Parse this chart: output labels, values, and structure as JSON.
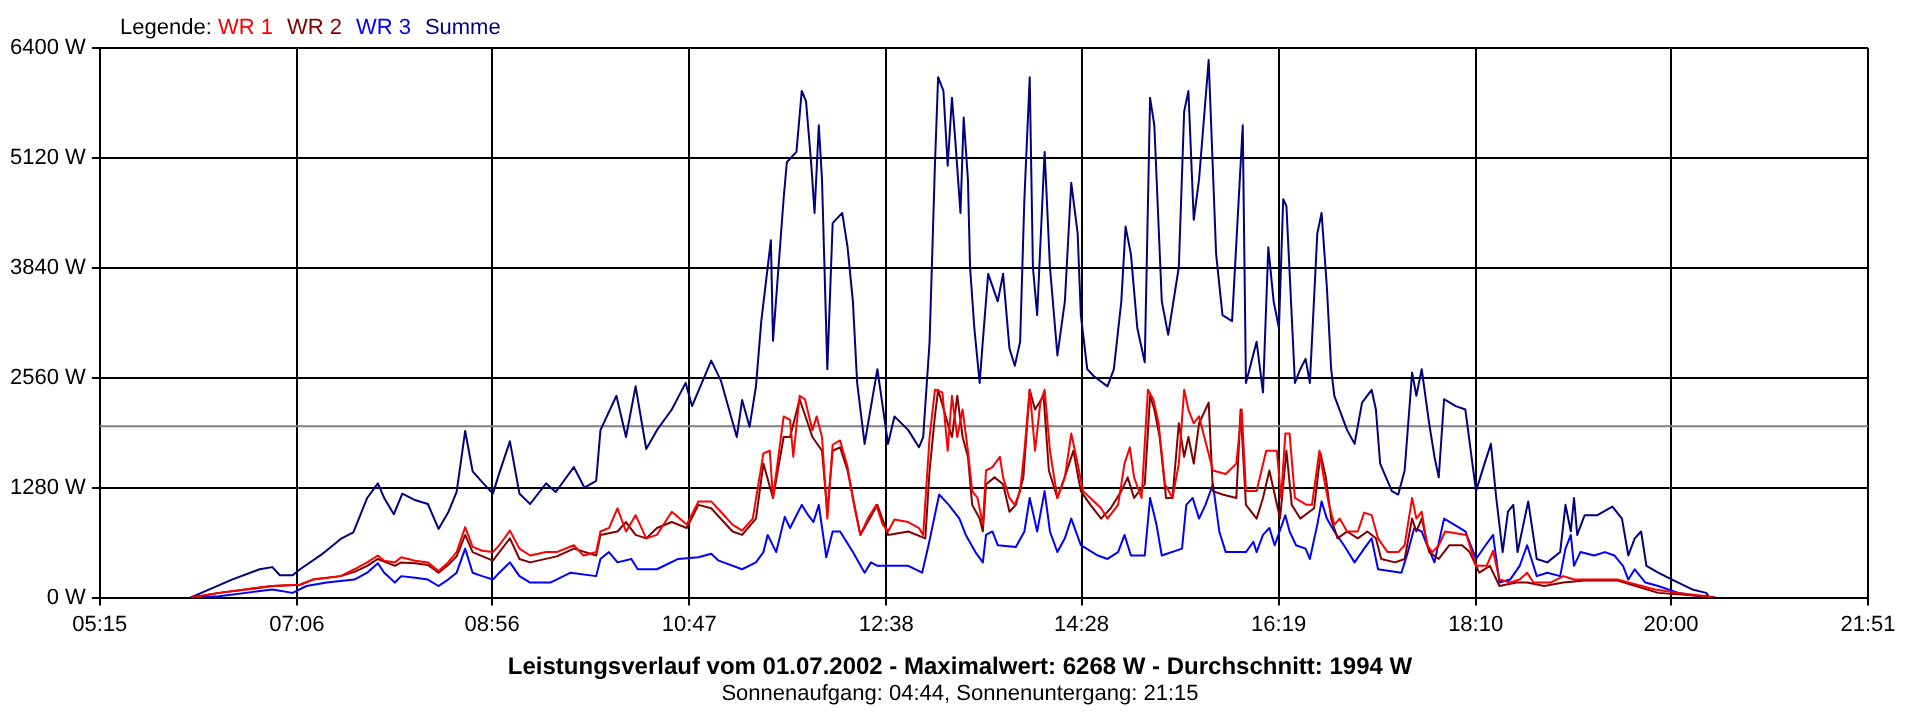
{
  "chart_data": {
    "type": "line",
    "title": "Leistungsverlauf vom 01.07.2002 - Maximalwert: 6268 W - Durchschnitt: 1994 W",
    "subtitle": "Sonnenaufgang: 04:44, Sonnenuntergang: 21:15",
    "legend_title": "Legende:",
    "legend": "top left",
    "grid": true,
    "marker": "none",
    "xlim": [
      5.25,
      21.85
    ],
    "xticks": [
      {
        "value": 5.25,
        "label": "05:15"
      },
      {
        "value": 7.1,
        "label": "07:06"
      },
      {
        "value": 8.9333,
        "label": "08:56"
      },
      {
        "value": 10.7833,
        "label": "10:47"
      },
      {
        "value": 12.6333,
        "label": "12:38"
      },
      {
        "value": 14.4667,
        "label": "14:28"
      },
      {
        "value": 16.3167,
        "label": "16:19"
      },
      {
        "value": 18.1667,
        "label": "18:10"
      },
      {
        "value": 20,
        "label": "20:00"
      },
      {
        "value": 21.85,
        "label": "21:51"
      }
    ],
    "ylim": [
      0,
      6400
    ],
    "yticks": [
      {
        "value": 0,
        "label": "0 W"
      },
      {
        "value": 1280,
        "label": "1280 W"
      },
      {
        "value": 2560,
        "label": "2560 W"
      },
      {
        "value": 3840,
        "label": "3840 W"
      },
      {
        "value": 5120,
        "label": "5120 W"
      },
      {
        "value": 6400,
        "label": "6400 W"
      }
    ],
    "ref_lines": [
      {
        "axis": "y",
        "value": 1994,
        "color": "#808080"
      }
    ],
    "series": [
      {
        "name": "WR 1",
        "color": "#ff0000",
        "x": [
          6.11,
          6.37,
          6.62,
          6.87,
          7.13,
          7.25,
          7.51,
          7.64,
          7.76,
          7.86,
          7.92,
          8.02,
          8.08,
          8.21,
          8.33,
          8.43,
          8.52,
          8.6,
          8.68,
          8.75,
          8.84,
          8.94,
          9.0,
          9.1,
          9.19,
          9.29,
          9.44,
          9.54,
          9.7,
          9.79,
          9.91,
          9.95,
          10.03,
          10.11,
          10.19,
          10.28,
          10.38,
          10.48,
          10.62,
          10.76,
          10.87,
          10.99,
          11.08,
          11.19,
          11.28,
          11.38,
          11.48,
          11.54,
          11.57,
          11.67,
          11.73,
          11.76,
          11.82,
          11.87,
          11.94,
          11.98,
          12.03,
          12.08,
          12.13,
          12.2,
          12.27,
          12.33,
          12.39,
          12.46,
          12.54,
          12.6,
          12.65,
          12.71,
          12.84,
          12.94,
          12.98,
          13.04,
          13.09,
          13.16,
          13.21,
          13.25,
          13.3,
          13.35,
          13.4,
          13.44,
          13.49,
          13.54,
          13.57,
          13.63,
          13.7,
          13.73,
          13.79,
          13.84,
          13.89,
          13.93,
          13.98,
          14.03,
          14.08,
          14.12,
          14.17,
          14.24,
          14.31,
          14.37,
          14.43,
          14.48,
          14.55,
          14.65,
          14.71,
          14.81,
          14.87,
          14.92,
          14.96,
          15.03,
          15.09,
          15.14,
          15.19,
          15.25,
          15.32,
          15.38,
          15.43,
          15.47,
          15.52,
          15.57,
          15.7,
          15.82,
          15.92,
          15.97,
          16.01,
          16.11,
          16.2,
          16.3,
          16.34,
          16.38,
          16.42,
          16.47,
          16.58,
          16.63,
          16.7,
          16.74,
          16.79,
          16.84,
          16.89,
          16.96,
          17.06,
          17.12,
          17.19,
          17.25,
          17.34,
          17.44,
          17.5,
          17.57,
          17.61,
          17.66,
          17.71,
          17.76,
          17.82,
          17.88,
          18.08,
          18.17,
          18.27,
          18.33,
          18.39,
          18.49,
          18.58,
          18.65,
          18.71,
          18.87,
          18.99,
          19.09,
          19.5,
          19.6,
          19.85,
          20.07,
          20.33,
          20.39
        ],
        "values": [
          0,
          55,
          95,
          135,
          150,
          210,
          250,
          330,
          410,
          490,
          430,
          410,
          470,
          430,
          410,
          310,
          410,
          530,
          820,
          590,
          545,
          530,
          610,
          780,
          570,
          490,
          530,
          530,
          610,
          490,
          530,
          770,
          810,
          1040,
          770,
          960,
          690,
          730,
          1000,
          850,
          1120,
          1120,
          1000,
          850,
          780,
          920,
          1680,
          1710,
          1160,
          2110,
          2070,
          1640,
          2350,
          2310,
          1950,
          2110,
          1870,
          920,
          1780,
          1830,
          1520,
          1080,
          730,
          920,
          1080,
          850,
          770,
          910,
          880,
          810,
          730,
          1870,
          2420,
          2390,
          1710,
          2350,
          1870,
          2190,
          1710,
          1240,
          1160,
          850,
          1480,
          1520,
          1640,
          1400,
          1160,
          1080,
          1240,
          1710,
          2420,
          1710,
          2270,
          2420,
          1710,
          1160,
          1400,
          1910,
          1560,
          1240,
          1160,
          1040,
          920,
          1080,
          1560,
          1750,
          1400,
          1160,
          2420,
          2310,
          2030,
          1320,
          1160,
          1560,
          2420,
          2190,
          2030,
          2110,
          1480,
          1440,
          1560,
          2190,
          1240,
          1240,
          1710,
          1710,
          1160,
          1910,
          1910,
          1160,
          1080,
          1080,
          1710,
          1400,
          1080,
          850,
          920,
          770,
          770,
          990,
          960,
          690,
          530,
          530,
          610,
          1160,
          920,
          1000,
          610,
          530,
          610,
          770,
          730,
          370,
          370,
          545,
          210,
          175,
          210,
          290,
          175,
          175,
          250,
          210,
          210,
          175,
          95,
          55,
          15,
          0
        ]
      },
      {
        "name": "WR 2",
        "color": "#800000",
        "x": [
          6.11,
          6.37,
          6.62,
          6.87,
          7.13,
          7.25,
          7.51,
          7.64,
          7.76,
          7.86,
          8.02,
          8.08,
          8.21,
          8.33,
          8.43,
          8.52,
          8.6,
          8.68,
          8.75,
          8.94,
          9.1,
          9.19,
          9.29,
          9.54,
          9.7,
          9.91,
          9.95,
          10.11,
          10.19,
          10.28,
          10.38,
          10.48,
          10.62,
          10.76,
          10.87,
          10.99,
          11.19,
          11.28,
          11.41,
          11.48,
          11.57,
          11.67,
          11.73,
          11.82,
          11.94,
          12.03,
          12.08,
          12.13,
          12.2,
          12.27,
          12.39,
          12.55,
          12.65,
          12.84,
          13.0,
          13.04,
          13.09,
          13.12,
          13.21,
          13.25,
          13.3,
          13.35,
          13.4,
          13.44,
          13.51,
          13.54,
          13.57,
          13.65,
          13.73,
          13.79,
          13.85,
          13.92,
          13.98,
          14.03,
          14.11,
          14.16,
          14.24,
          14.33,
          14.39,
          14.46,
          14.55,
          14.65,
          14.74,
          14.84,
          14.9,
          14.96,
          15.06,
          15.11,
          15.15,
          15.2,
          15.26,
          15.32,
          15.38,
          15.43,
          15.47,
          15.52,
          15.57,
          15.66,
          15.7,
          15.79,
          15.92,
          15.96,
          16.01,
          16.11,
          16.17,
          16.23,
          16.33,
          16.39,
          16.44,
          16.52,
          16.65,
          16.71,
          16.76,
          16.81,
          16.87,
          16.96,
          17.06,
          17.15,
          17.23,
          17.28,
          17.41,
          17.5,
          17.57,
          17.61,
          17.66,
          17.73,
          17.82,
          17.92,
          18.04,
          18.11,
          18.2,
          18.3,
          18.39,
          18.55,
          18.65,
          18.81,
          18.99,
          19.19,
          19.5,
          19.63,
          19.88,
          20.33,
          20.42
        ],
        "values": [
          0,
          55,
          95,
          135,
          150,
          210,
          250,
          300,
          370,
          450,
          370,
          410,
          400,
          380,
          290,
          380,
          480,
          730,
          530,
          430,
          690,
          450,
          410,
          480,
          570,
          490,
          730,
          770,
          880,
          730,
          690,
          810,
          880,
          810,
          1080,
          1040,
          770,
          730,
          920,
          1560,
          1160,
          1870,
          1870,
          2310,
          1870,
          1710,
          1000,
          1710,
          1750,
          1480,
          730,
          1080,
          730,
          770,
          690,
          1480,
          2110,
          2420,
          2030,
          1870,
          2350,
          1870,
          1640,
          1080,
          920,
          770,
          1320,
          1400,
          1320,
          1000,
          1080,
          1400,
          2420,
          2190,
          2350,
          1480,
          1160,
          1480,
          1710,
          1240,
          1080,
          920,
          1040,
          1240,
          1400,
          1160,
          1320,
          2350,
          2190,
          1870,
          1160,
          1160,
          2030,
          1640,
          1870,
          1560,
          2030,
          2270,
          1240,
          1200,
          1160,
          2190,
          1080,
          920,
          1160,
          1480,
          920,
          1710,
          1080,
          920,
          1040,
          1680,
          1400,
          920,
          690,
          770,
          690,
          770,
          690,
          450,
          410,
          450,
          920,
          770,
          920,
          530,
          450,
          610,
          610,
          530,
          290,
          370,
          135,
          175,
          175,
          135,
          175,
          200,
          200,
          150,
          55,
          15,
          0
        ]
      },
      {
        "name": "WR 3",
        "color": "#0000ff",
        "x": [
          6.11,
          6.37,
          6.62,
          6.87,
          7.06,
          7.19,
          7.38,
          7.64,
          7.76,
          7.86,
          7.92,
          8.02,
          8.08,
          8.21,
          8.33,
          8.43,
          8.52,
          8.6,
          8.68,
          8.75,
          8.84,
          8.94,
          9.0,
          9.1,
          9.19,
          9.29,
          9.48,
          9.67,
          9.91,
          9.95,
          10.03,
          10.11,
          10.24,
          10.3,
          10.48,
          10.68,
          10.87,
          10.99,
          11.06,
          11.28,
          11.41,
          11.48,
          11.52,
          11.6,
          11.68,
          11.73,
          11.84,
          11.9,
          11.95,
          12.0,
          12.07,
          12.13,
          12.2,
          12.32,
          12.43,
          12.49,
          12.55,
          12.84,
          12.97,
          13.03,
          13.13,
          13.22,
          13.32,
          13.38,
          13.47,
          13.54,
          13.57,
          13.63,
          13.68,
          13.85,
          13.93,
          13.98,
          14.05,
          14.12,
          14.17,
          14.24,
          14.31,
          14.37,
          14.46,
          14.62,
          14.71,
          14.81,
          14.87,
          14.93,
          15.06,
          15.11,
          15.17,
          15.22,
          15.41,
          15.45,
          15.51,
          15.57,
          15.63,
          15.7,
          15.76,
          15.82,
          16.01,
          16.08,
          16.11,
          16.17,
          16.23,
          16.28,
          16.38,
          16.42,
          16.48,
          16.57,
          16.61,
          16.68,
          16.72,
          16.77,
          16.84,
          16.93,
          17.03,
          17.12,
          17.19,
          17.25,
          17.47,
          17.53,
          17.59,
          17.66,
          17.71,
          17.78,
          17.87,
          18.07,
          18.17,
          18.26,
          18.33,
          18.39,
          18.49,
          18.58,
          18.65,
          18.74,
          18.84,
          18.96,
          19.01,
          19.06,
          19.09,
          19.15,
          19.28,
          19.38,
          19.47,
          19.55,
          19.6,
          19.66,
          19.76,
          19.88,
          20.07,
          20.26,
          20.36
        ],
        "values": [
          0,
          15,
          55,
          95,
          55,
          135,
          175,
          210,
          290,
          400,
          290,
          175,
          250,
          230,
          210,
          135,
          210,
          290,
          570,
          290,
          250,
          210,
          290,
          410,
          250,
          175,
          175,
          290,
          250,
          450,
          530,
          410,
          450,
          330,
          330,
          450,
          470,
          510,
          430,
          330,
          410,
          530,
          730,
          530,
          940,
          810,
          1080,
          960,
          880,
          1080,
          470,
          770,
          770,
          530,
          290,
          410,
          370,
          370,
          290,
          610,
          1200,
          1080,
          920,
          730,
          530,
          410,
          730,
          770,
          610,
          590,
          770,
          1160,
          770,
          1240,
          770,
          530,
          690,
          920,
          610,
          490,
          450,
          530,
          730,
          490,
          490,
          1160,
          850,
          490,
          570,
          1080,
          1160,
          920,
          1080,
          1320,
          770,
          530,
          530,
          650,
          530,
          730,
          810,
          610,
          960,
          770,
          610,
          570,
          450,
          850,
          1120,
          920,
          770,
          610,
          410,
          570,
          690,
          330,
          290,
          530,
          810,
          770,
          610,
          410,
          920,
          770,
          450,
          610,
          730,
          175,
          210,
          370,
          610,
          250,
          290,
          250,
          570,
          730,
          370,
          530,
          490,
          530,
          490,
          370,
          210,
          330,
          175,
          135,
          55,
          15,
          0
        ]
      },
      {
        "name": "Summe",
        "color": "#000080",
        "x": [
          6.1,
          6.49,
          6.75,
          6.87,
          6.94,
          7.06,
          7.13,
          7.33,
          7.52,
          7.63,
          7.76,
          7.86,
          7.92,
          8.01,
          8.09,
          8.2,
          8.33,
          8.43,
          8.52,
          8.6,
          8.68,
          8.75,
          8.85,
          8.94,
          9.0,
          9.1,
          9.19,
          9.29,
          9.44,
          9.53,
          9.7,
          9.8,
          9.91,
          9.95,
          10.1,
          10.19,
          10.28,
          10.38,
          10.48,
          10.62,
          10.75,
          10.81,
          10.99,
          11.08,
          11.23,
          11.28,
          11.35,
          11.41,
          11.46,
          11.55,
          11.57,
          11.67,
          11.7,
          11.79,
          11.84,
          11.88,
          11.93,
          11.96,
          12.0,
          12.03,
          12.08,
          12.13,
          12.22,
          12.27,
          12.32,
          12.36,
          12.43,
          12.55,
          12.65,
          12.71,
          12.84,
          12.94,
          12.98,
          13.04,
          13.09,
          13.12,
          13.17,
          13.21,
          13.25,
          13.28,
          13.33,
          13.36,
          13.4,
          13.42,
          13.46,
          13.51,
          13.54,
          13.59,
          13.68,
          13.73,
          13.79,
          13.84,
          13.89,
          13.93,
          13.98,
          14.01,
          14.05,
          14.12,
          14.17,
          14.24,
          14.31,
          14.37,
          14.43,
          14.46,
          14.52,
          14.58,
          14.71,
          14.77,
          14.84,
          14.88,
          14.93,
          14.99,
          15.06,
          15.11,
          15.15,
          15.22,
          15.28,
          15.38,
          15.43,
          15.47,
          15.52,
          15.57,
          15.66,
          15.73,
          15.79,
          15.88,
          15.98,
          16.01,
          16.11,
          16.17,
          16.22,
          16.27,
          16.32,
          16.36,
          16.39,
          16.47,
          16.52,
          16.57,
          16.61,
          16.68,
          16.72,
          16.77,
          16.81,
          16.84,
          16.96,
          17.03,
          17.1,
          17.19,
          17.23,
          17.27,
          17.38,
          17.44,
          17.5,
          17.57,
          17.61,
          17.66,
          17.73,
          17.78,
          17.82,
          17.87,
          17.98,
          18.07,
          18.17,
          18.25,
          18.31,
          18.36,
          18.42,
          18.47,
          18.52,
          18.56,
          18.66,
          18.74,
          18.84,
          18.96,
          19.01,
          19.06,
          19.09,
          19.12,
          19.19,
          19.31,
          19.45,
          19.54,
          19.6,
          19.66,
          19.72,
          19.77,
          19.88,
          20.01,
          20.2,
          20.33,
          20.36
        ],
        "values": [
          0,
          210,
          330,
          355,
          260,
          260,
          330,
          500,
          690,
          760,
          1160,
          1330,
          1160,
          970,
          1210,
          1140,
          1090,
          800,
          990,
          1230,
          1940,
          1470,
          1330,
          1210,
          1450,
          1820,
          1210,
          1090,
          1330,
          1230,
          1520,
          1280,
          1360,
          1950,
          2350,
          1870,
          2460,
          1730,
          1950,
          2190,
          2500,
          2230,
          2760,
          2530,
          1870,
          2300,
          1990,
          2460,
          3220,
          4160,
          2990,
          4650,
          5070,
          5190,
          5900,
          5780,
          5030,
          4480,
          5500,
          4870,
          2660,
          4360,
          4480,
          4080,
          3450,
          2500,
          1790,
          2660,
          1790,
          2110,
          1950,
          1750,
          1870,
          2980,
          5030,
          6060,
          5900,
          5030,
          5820,
          5350,
          4480,
          5590,
          4870,
          3850,
          3140,
          2500,
          2990,
          3770,
          3450,
          3770,
          2900,
          2700,
          2980,
          4640,
          6060,
          3850,
          3290,
          5190,
          3850,
          2820,
          3450,
          4830,
          4240,
          3290,
          2660,
          2580,
          2460,
          2660,
          3450,
          4320,
          4000,
          3140,
          2740,
          5820,
          5500,
          3450,
          3060,
          3850,
          5660,
          5900,
          4400,
          4870,
          6260,
          4000,
          3290,
          3220,
          5500,
          2500,
          2980,
          2390,
          4080,
          3450,
          3140,
          4640,
          4560,
          2500,
          2660,
          2780,
          2500,
          4240,
          4480,
          3610,
          2660,
          2350,
          1950,
          1790,
          2270,
          2420,
          2190,
          1560,
          1240,
          1200,
          1480,
          2620,
          2350,
          2660,
          2030,
          1640,
          1400,
          2310,
          2230,
          2190,
          1240,
          1560,
          1790,
          1160,
          530,
          1000,
          1080,
          530,
          1120,
          450,
          410,
          530,
          1080,
          770,
          1160,
          730,
          960,
          960,
          1060,
          920,
          490,
          690,
          770,
          370,
          290,
          210,
          95,
          55,
          0
        ]
      }
    ]
  }
}
